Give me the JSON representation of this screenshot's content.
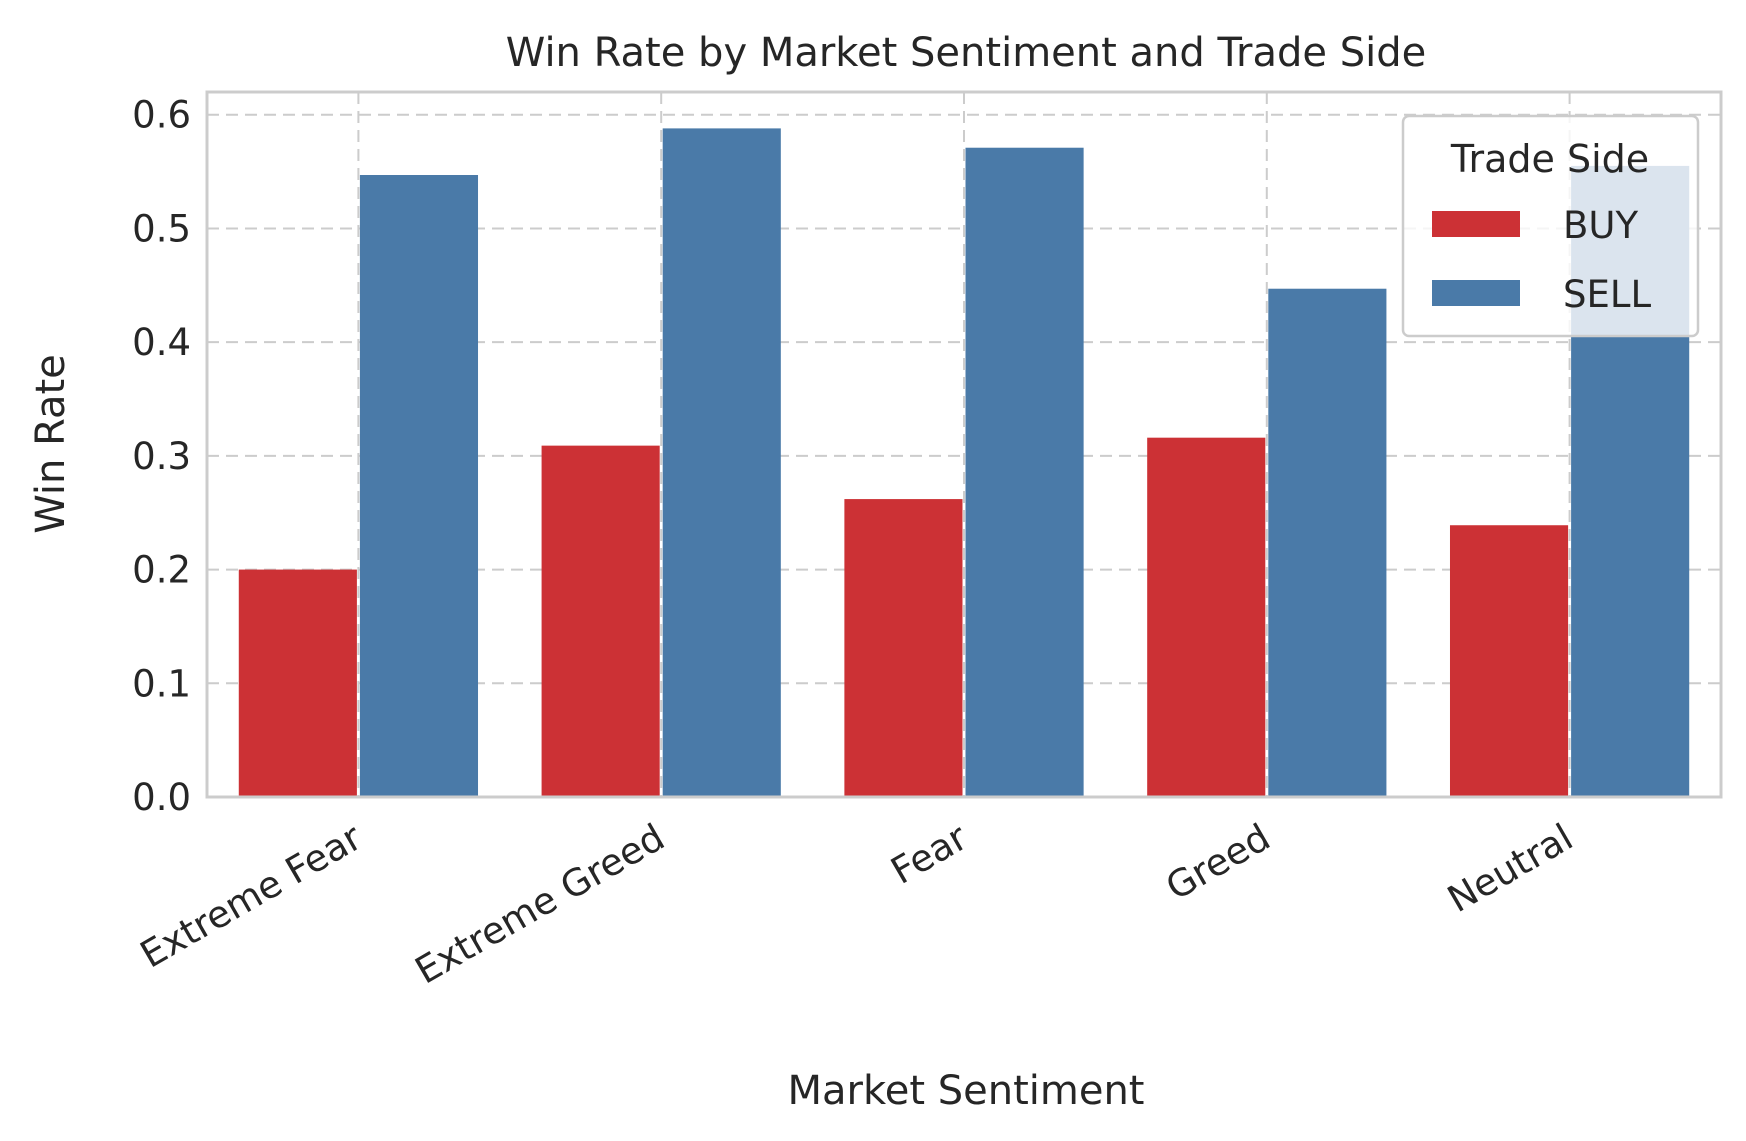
{
  "chart_data": {
    "type": "bar",
    "title": "Win Rate by Market Sentiment and Trade Side",
    "xlabel": "Market Sentiment",
    "ylabel": "Win Rate",
    "categories": [
      "Extreme Fear",
      "Extreme Greed",
      "Fear",
      "Greed",
      "Neutral"
    ],
    "series": [
      {
        "name": "BUY",
        "color": "#cc3135",
        "values": [
          0.2,
          0.309,
          0.262,
          0.316,
          0.239
        ]
      },
      {
        "name": "SELL",
        "color": "#4a7aa8",
        "values": [
          0.547,
          0.588,
          0.571,
          0.447,
          0.555
        ]
      }
    ],
    "ylim": [
      0,
      0.62
    ],
    "yticks": [
      0.0,
      0.1,
      0.2,
      0.3,
      0.4,
      0.5,
      0.6
    ],
    "ytick_labels": [
      "0.0",
      "0.1",
      "0.2",
      "0.3",
      "0.4",
      "0.5",
      "0.6"
    ],
    "grid": true,
    "legend": {
      "title": "Trade Side",
      "placement": "upper right"
    }
  }
}
